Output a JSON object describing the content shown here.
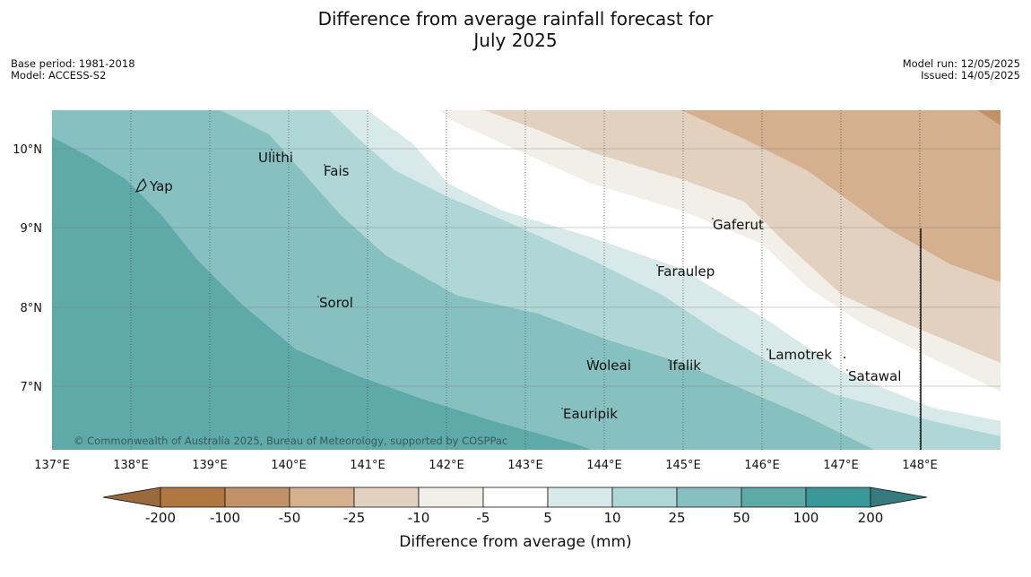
{
  "title": {
    "line1": "Difference from average rainfall forecast for",
    "line2": "July 2025"
  },
  "meta": {
    "base_period": "Base period: 1981-2018",
    "model": "Model: ACCESS-S2",
    "model_run": "Model run: 12/05/2025",
    "issued": "Issued: 14/05/2025"
  },
  "map": {
    "lon_ticks": [
      "137°E",
      "138°E",
      "139°E",
      "140°E",
      "141°E",
      "142°E",
      "143°E",
      "144°E",
      "145°E",
      "146°E",
      "147°E",
      "148°E"
    ],
    "lat_ticks": [
      "10°N",
      "9°N",
      "8°N",
      "7°N"
    ],
    "places": [
      {
        "name": "Yap"
      },
      {
        "name": "Ulithi"
      },
      {
        "name": "Fais"
      },
      {
        "name": "Gaferut"
      },
      {
        "name": "Faraulep"
      },
      {
        "name": "Sorol"
      },
      {
        "name": "Lamotrek"
      },
      {
        "name": "Woleai"
      },
      {
        "name": "Ifalik"
      },
      {
        "name": "Satawal"
      },
      {
        "name": "Eauripik"
      }
    ],
    "copyright": "© Commonwealth of Australia 2025, Bureau of Meteorology, supported by COSPPac"
  },
  "colorbar": {
    "label": "Difference from average (mm)",
    "ticks": [
      "-200",
      "-100",
      "-50",
      "-25",
      "-10",
      "-5",
      "5",
      "10",
      "25",
      "50",
      "100",
      "200"
    ],
    "colors": [
      "#9b6a3b",
      "#b07840",
      "#c39168",
      "#d4b08f",
      "#e3d1c0",
      "#f2efe9",
      "#ffffff",
      "#d7e9e8",
      "#aed7d6",
      "#87c0c0",
      "#5daaa9",
      "#3a9898",
      "#357b7d"
    ]
  }
}
